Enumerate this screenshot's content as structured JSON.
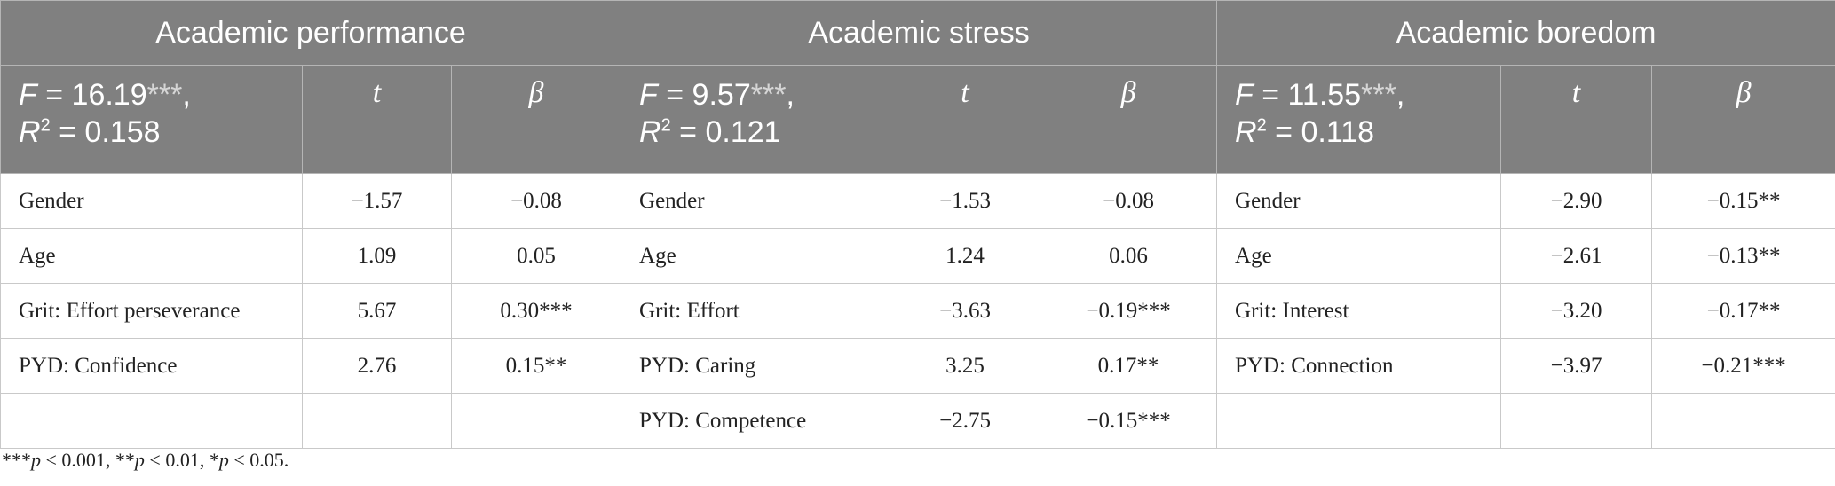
{
  "groups": [
    {
      "title": "Academic performance",
      "F_label": "F",
      "F_value": " = 16.19",
      "F_stars": "***",
      "F_tail": ",",
      "R_label": "R",
      "R_sup": "2",
      "R_value": " = 0.158",
      "t_header": "t",
      "beta_header": "β"
    },
    {
      "title": "Academic stress",
      "F_label": "F",
      "F_value": " = 9.57",
      "F_stars": "***",
      "F_tail": ",",
      "R_label": "R",
      "R_sup": "2",
      "R_value": " = 0.121",
      "t_header": "t",
      "beta_header": "β"
    },
    {
      "title": "Academic boredom",
      "F_label": "F",
      "F_value": " = 11.55",
      "F_stars": "***",
      "F_tail": ",",
      "R_label": "R",
      "R_sup": "2",
      "R_value": " = 0.118",
      "t_header": "t",
      "beta_header": "β"
    }
  ],
  "rows": [
    [
      {
        "predictor": "Gender",
        "t": "−1.57",
        "beta": "−0.08"
      },
      {
        "predictor": "Gender",
        "t": "−1.53",
        "beta": "−0.08"
      },
      {
        "predictor": "Gender",
        "t": "−2.90",
        "beta": "−0.15**"
      }
    ],
    [
      {
        "predictor": "Age",
        "t": "1.09",
        "beta": "0.05"
      },
      {
        "predictor": "Age",
        "t": "1.24",
        "beta": "0.06"
      },
      {
        "predictor": "Age",
        "t": "−2.61",
        "beta": "−0.13**"
      }
    ],
    [
      {
        "predictor": "Grit: Effort perseverance",
        "t": "5.67",
        "beta": "0.30***"
      },
      {
        "predictor": "Grit: Effort",
        "t": "−3.63",
        "beta": "−0.19***"
      },
      {
        "predictor": "Grit: Interest",
        "t": "−3.20",
        "beta": "−0.17**"
      }
    ],
    [
      {
        "predictor": "PYD: Confidence",
        "t": "2.76",
        "beta": "0.15**"
      },
      {
        "predictor": "PYD: Caring",
        "t": "3.25",
        "beta": "0.17**"
      },
      {
        "predictor": "PYD: Connection",
        "t": "−3.97",
        "beta": "−0.21***"
      }
    ],
    [
      {
        "predictor": "",
        "t": "",
        "beta": ""
      },
      {
        "predictor": "PYD: Competence",
        "t": "−2.75",
        "beta": "−0.15***"
      },
      {
        "predictor": "",
        "t": "",
        "beta": ""
      }
    ]
  ],
  "footnote": {
    "s1": "***",
    "p1": "p",
    "v1": " < 0.001, **",
    "p2": "p",
    "v2": " < 0.01, *",
    "p3": "p",
    "v3": " < 0.05."
  },
  "colors": {
    "header_bg": "#808080",
    "header_text": "#ffffff",
    "grid": "#c9c9c9"
  }
}
